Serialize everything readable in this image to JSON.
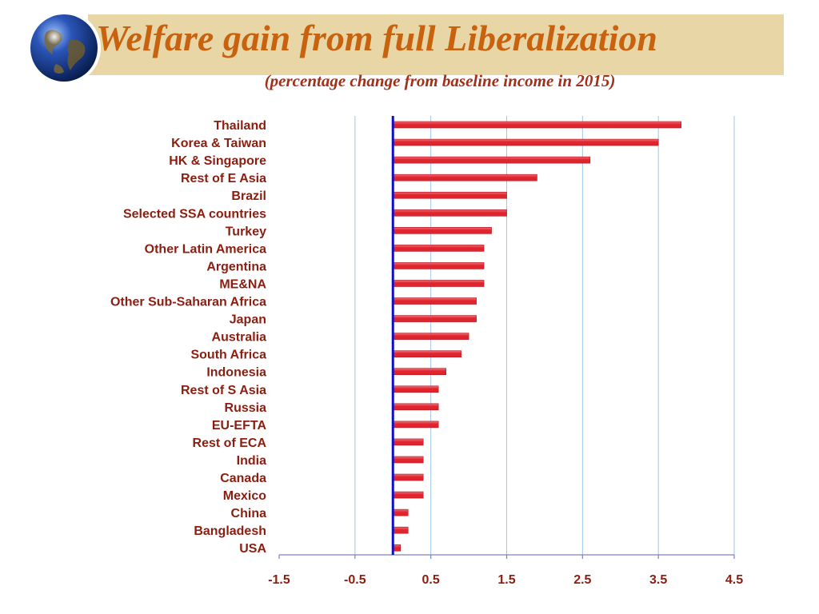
{
  "title": "Welfare gain from full Liberalization",
  "subtitle": "(percentage change from baseline income in 2015)",
  "colors": {
    "bar": "#e0242e",
    "bar_highlight": "#f07078",
    "zero_line": "#1010c0",
    "grid": "#9cc8ec",
    "label": "#8b1e10",
    "title": "#c8620f",
    "banner": "#e8d6a6"
  },
  "chart_data": {
    "type": "bar",
    "orientation": "horizontal",
    "title": "Welfare gain from full Liberalization",
    "subtitle": "(percentage change from baseline income in 2015)",
    "xlabel": "",
    "ylabel": "",
    "xlim": [
      -1.5,
      4.5
    ],
    "xticks": [
      -1.5,
      -0.5,
      0.5,
      1.5,
      2.5,
      3.5,
      4.5
    ],
    "xtick_labels": [
      "-1.5",
      "-0.5",
      "0.5",
      "1.5",
      "2.5",
      "3.5",
      "4.5"
    ],
    "grid": true,
    "categories": [
      "Thailand",
      "Korea & Taiwan",
      "HK & Singapore",
      "Rest of E Asia",
      "Brazil",
      "Selected SSA countries",
      "Turkey",
      "Other Latin America",
      "Argentina",
      "ME&NA",
      "Other Sub-Saharan Africa",
      "Japan",
      "Australia",
      "South Africa",
      "Indonesia",
      "Rest of S Asia",
      "Russia",
      "EU-EFTA",
      "Rest of ECA",
      "India",
      "Canada",
      "Mexico",
      "China",
      "Bangladesh",
      "USA"
    ],
    "values": [
      3.8,
      3.5,
      2.6,
      1.9,
      1.5,
      1.5,
      1.3,
      1.2,
      1.2,
      1.2,
      1.1,
      1.1,
      1.0,
      0.9,
      0.7,
      0.6,
      0.6,
      0.6,
      0.4,
      0.4,
      0.4,
      0.4,
      0.2,
      0.2,
      0.1
    ]
  }
}
